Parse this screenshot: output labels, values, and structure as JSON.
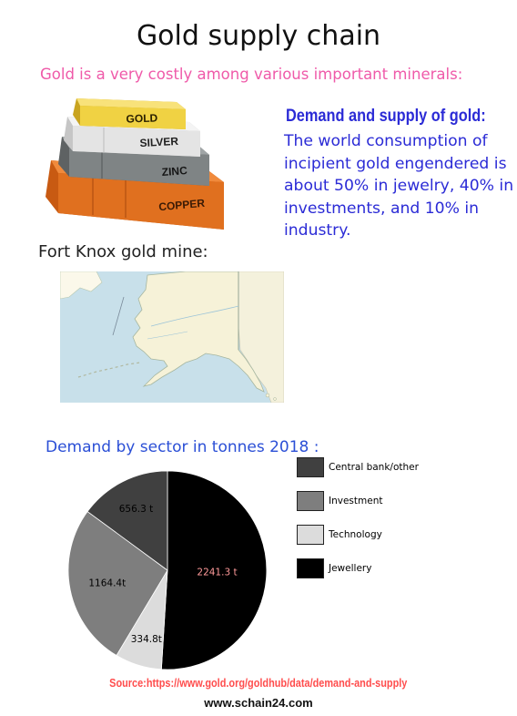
{
  "header": {
    "title": "Gold supply chain",
    "subtitle": "Gold  is a very costly among various important minerals:"
  },
  "ingots": {
    "labels": [
      "GOLD",
      "SILVER",
      "ZINC",
      "COPPER"
    ],
    "colors": {
      "gold": "#f0d243",
      "silver": "#e4e4e4",
      "zinc": "#7f8485",
      "copper": "#e0701f"
    }
  },
  "demand_supply": {
    "heading": "Demand and supply of gold:",
    "body": " The world consumption of incipient gold engendered is about 50% in jewelry, 40% in investments, and  10% in industry."
  },
  "mine": {
    "heading": "Fort Knox gold mine:"
  },
  "chart_data": {
    "type": "pie",
    "title": "Demand by sector in tonnes 2018 :",
    "unit": "tonnes",
    "slices": [
      {
        "name": "Jewellery",
        "value": 2241.3,
        "label": "2241.3 t",
        "color": "#000000",
        "label_color": "#ff9a9a"
      },
      {
        "name": "Technology",
        "value": 334.8,
        "label": "334.8t",
        "color": "#dcdcdc",
        "label_color": "#000000"
      },
      {
        "name": "Investment",
        "value": 1164.4,
        "label": "1164.4t",
        "color": "#7e7e7e",
        "label_color": "#000000"
      },
      {
        "name": "Central bank/other",
        "value": 656.3,
        "label": "656.3 t",
        "color": "#404040",
        "label_color": "#000000"
      }
    ],
    "legend": [
      {
        "label": "Central bank/other",
        "color": "#404040"
      },
      {
        "label": "Investment",
        "color": "#7e7e7e"
      },
      {
        "label": "Technology",
        "color": "#dcdcdc"
      },
      {
        "label": "Jewellery",
        "color": "#000000"
      }
    ],
    "start": "12 o'clock",
    "direction": "clockwise",
    "legend_position": "right"
  },
  "footer": {
    "source": "Source:https://www.gold.org/goldhub/data/demand-and-supply",
    "website": "www.schain24.com"
  }
}
